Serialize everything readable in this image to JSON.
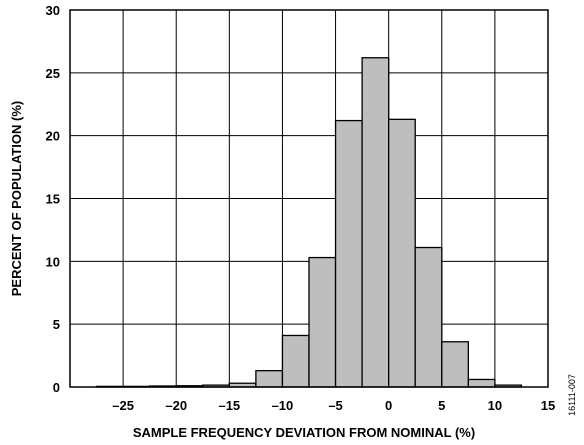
{
  "chart_data": {
    "type": "bar",
    "title": "",
    "xlabel": "SAMPLE FREQUENCY DEVIATION FROM NOMINAL (%)",
    "ylabel": "PERCENT OF POPULATION (%)",
    "xlim": [
      -30,
      15
    ],
    "ylim": [
      0,
      30
    ],
    "xticks": [
      -25,
      -20,
      -15,
      -10,
      -5,
      0,
      5,
      10,
      15
    ],
    "xtick_labels": [
      "–25",
      "–20",
      "–15",
      "–10",
      "–5",
      "0",
      "5",
      "10",
      "15"
    ],
    "yticks": [
      0,
      5,
      10,
      15,
      20,
      25,
      30
    ],
    "ytick_labels": [
      "0",
      "5",
      "10",
      "15",
      "20",
      "25",
      "30"
    ],
    "grid": true,
    "legend": "none",
    "bar_color": "#bebebe",
    "bar_edge_color": "#000000",
    "bins": [
      {
        "x0": -27.5,
        "x1": -25,
        "value": 0.05
      },
      {
        "x0": -25,
        "x1": -22.5,
        "value": 0.05
      },
      {
        "x0": -22.5,
        "x1": -20,
        "value": 0.08
      },
      {
        "x0": -20,
        "x1": -17.5,
        "value": 0.1
      },
      {
        "x0": -17.5,
        "x1": -15,
        "value": 0.15
      },
      {
        "x0": -15,
        "x1": -12.5,
        "value": 0.3
      },
      {
        "x0": -12.5,
        "x1": -10,
        "value": 1.3
      },
      {
        "x0": -10,
        "x1": -7.5,
        "value": 4.1
      },
      {
        "x0": -7.5,
        "x1": -5,
        "value": 10.3
      },
      {
        "x0": -5,
        "x1": -2.5,
        "value": 21.2
      },
      {
        "x0": -2.5,
        "x1": 0,
        "value": 26.2
      },
      {
        "x0": 0,
        "x1": 2.5,
        "value": 21.3
      },
      {
        "x0": 2.5,
        "x1": 5,
        "value": 11.1
      },
      {
        "x0": 5,
        "x1": 7.5,
        "value": 3.6
      },
      {
        "x0": 7.5,
        "x1": 10,
        "value": 0.6
      },
      {
        "x0": 10,
        "x1": 12.5,
        "value": 0.15
      }
    ]
  },
  "figure_id": "16111-007"
}
